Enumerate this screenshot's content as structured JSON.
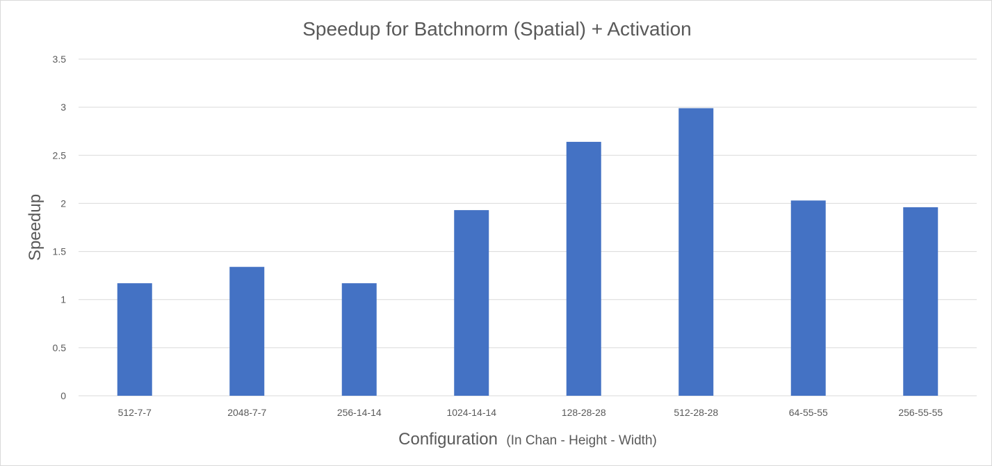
{
  "chart_data": {
    "type": "bar",
    "title": "Speedup for Batchnorm (Spatial) + Activation",
    "xlabel": "Configuration",
    "xlabel_note": "(In Chan - Height - Width)",
    "ylabel": "Speedup",
    "ylim": [
      0,
      3.5
    ],
    "yticks": [
      "0",
      "0.5",
      "1",
      "1.5",
      "2",
      "2.5",
      "3",
      "3.5"
    ],
    "grid": true,
    "categories": [
      "512-7-7",
      "2048-7-7",
      "256-14-14",
      "1024-14-14",
      "128-28-28",
      "512-28-28",
      "64-55-55",
      "256-55-55"
    ],
    "values": [
      1.17,
      1.34,
      1.17,
      1.93,
      2.64,
      2.99,
      2.03,
      1.96
    ],
    "bar_color": "#4472c4"
  }
}
